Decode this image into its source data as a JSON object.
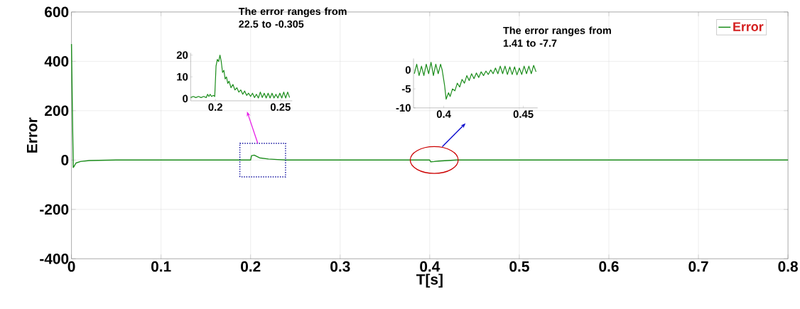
{
  "chart_data": [
    {
      "type": "line",
      "xlabel": "T[s]",
      "ylabel": "Error",
      "xlim": [
        0,
        0.8
      ],
      "ylim": [
        -400,
        600
      ],
      "xticks": [
        0,
        0.1,
        0.2,
        0.3,
        0.4,
        0.5,
        0.6,
        0.7,
        0.8
      ],
      "yticks": [
        -400,
        -200,
        0,
        200,
        400,
        600
      ],
      "grid": true,
      "legend": "top right",
      "series": [
        {
          "name": "Error",
          "color": "#1a8c1a",
          "x": [
            0,
            0.001,
            0.002,
            0.003,
            0.005,
            0.01,
            0.02,
            0.05,
            0.1,
            0.15,
            0.2,
            0.201,
            0.204,
            0.21,
            0.22,
            0.23,
            0.24,
            0.3,
            0.35,
            0.4,
            0.401,
            0.405,
            0.41,
            0.42,
            0.43,
            0.5,
            0.6,
            0.7,
            0.8
          ],
          "values": [
            470,
            200,
            -30,
            -25,
            -12,
            -6,
            -2,
            0,
            0,
            0,
            0,
            18,
            20,
            9,
            4,
            2,
            0,
            0,
            0,
            0,
            -7,
            -6,
            -4,
            -2,
            0,
            0,
            0,
            0,
            0
          ]
        }
      ]
    },
    {
      "type": "line",
      "xlim": [
        0.181,
        0.259
      ],
      "ylim": [
        -1,
        21
      ],
      "xticks": [
        0.2,
        0.25
      ],
      "yticks": [
        0,
        10,
        20
      ],
      "color": "#1a8c1a",
      "annotations": [
        "The error ranges from 22.5 to -0.305"
      ],
      "x": [
        0.181,
        0.183,
        0.185,
        0.187,
        0.189,
        0.191,
        0.193,
        0.194,
        0.195,
        0.196,
        0.197,
        0.1985,
        0.1995,
        0.2005,
        0.2015,
        0.2025,
        0.2035,
        0.2045,
        0.2055,
        0.2065,
        0.2075,
        0.2085,
        0.2095,
        0.2105,
        0.212,
        0.2135,
        0.215,
        0.2165,
        0.218,
        0.2195,
        0.221,
        0.2225,
        0.224,
        0.2255,
        0.227,
        0.2285,
        0.23,
        0.2315,
        0.233,
        0.2345,
        0.236,
        0.2375,
        0.239,
        0.2405,
        0.242,
        0.2435,
        0.245,
        0.2465,
        0.248,
        0.2495,
        0.251,
        0.2525,
        0.254,
        0.2555,
        0.257
      ],
      "values": [
        0.5,
        1,
        0.5,
        1,
        0.5,
        1,
        0.5,
        2,
        1,
        2,
        1,
        1.5,
        1,
        15,
        18,
        17,
        20,
        17,
        12,
        13,
        9,
        10,
        7,
        8,
        5,
        6.5,
        4,
        5,
        3,
        4,
        2,
        3.5,
        1.5,
        2.5,
        1,
        2.5,
        0.5,
        2,
        0.3,
        3,
        0.5,
        2.5,
        0.3,
        2.5,
        0.3,
        2.5,
        0.3,
        2,
        0.3,
        2.5,
        0.3,
        3,
        0.3,
        3,
        0.5
      ]
    },
    {
      "type": "line",
      "xlim": [
        0.381,
        0.459
      ],
      "ylim": [
        -10,
        3
      ],
      "xticks": [
        0.4,
        0.45
      ],
      "yticks": [
        -10,
        -5,
        0
      ],
      "color": "#1a8c1a",
      "annotations": [
        "The error ranges from 1.41 to -7.7"
      ],
      "x": [
        0.3815,
        0.383,
        0.3845,
        0.386,
        0.3875,
        0.389,
        0.3905,
        0.392,
        0.3935,
        0.395,
        0.3965,
        0.398,
        0.399,
        0.4005,
        0.4015,
        0.403,
        0.404,
        0.4055,
        0.407,
        0.4085,
        0.41,
        0.4115,
        0.413,
        0.4145,
        0.416,
        0.4175,
        0.419,
        0.4205,
        0.422,
        0.4235,
        0.425,
        0.4265,
        0.428,
        0.4295,
        0.431,
        0.4325,
        0.434,
        0.4355,
        0.437,
        0.4385,
        0.44,
        0.4415,
        0.443,
        0.4445,
        0.446,
        0.4475,
        0.449,
        0.4505,
        0.452,
        0.4535,
        0.455,
        0.4565,
        0.458
      ],
      "values": [
        -1,
        1.5,
        -1.5,
        1,
        -1.5,
        1.5,
        -1,
        2,
        -1.5,
        1.5,
        -1,
        1.5,
        0,
        -4,
        -7.7,
        -6,
        -7,
        -5,
        -5.5,
        -3.5,
        -4.5,
        -2.5,
        -3.5,
        -1.5,
        -2.8,
        -1,
        -2.3,
        -0.8,
        -2,
        -0.5,
        -1.5,
        -0.3,
        -1.2,
        0,
        -1,
        0.5,
        -1,
        1,
        -1,
        1,
        -1.2,
        0.8,
        -1.2,
        0.8,
        -1.3,
        0.5,
        -1.2,
        1,
        -1,
        1,
        -1,
        1.2,
        -0.5
      ]
    }
  ]
}
